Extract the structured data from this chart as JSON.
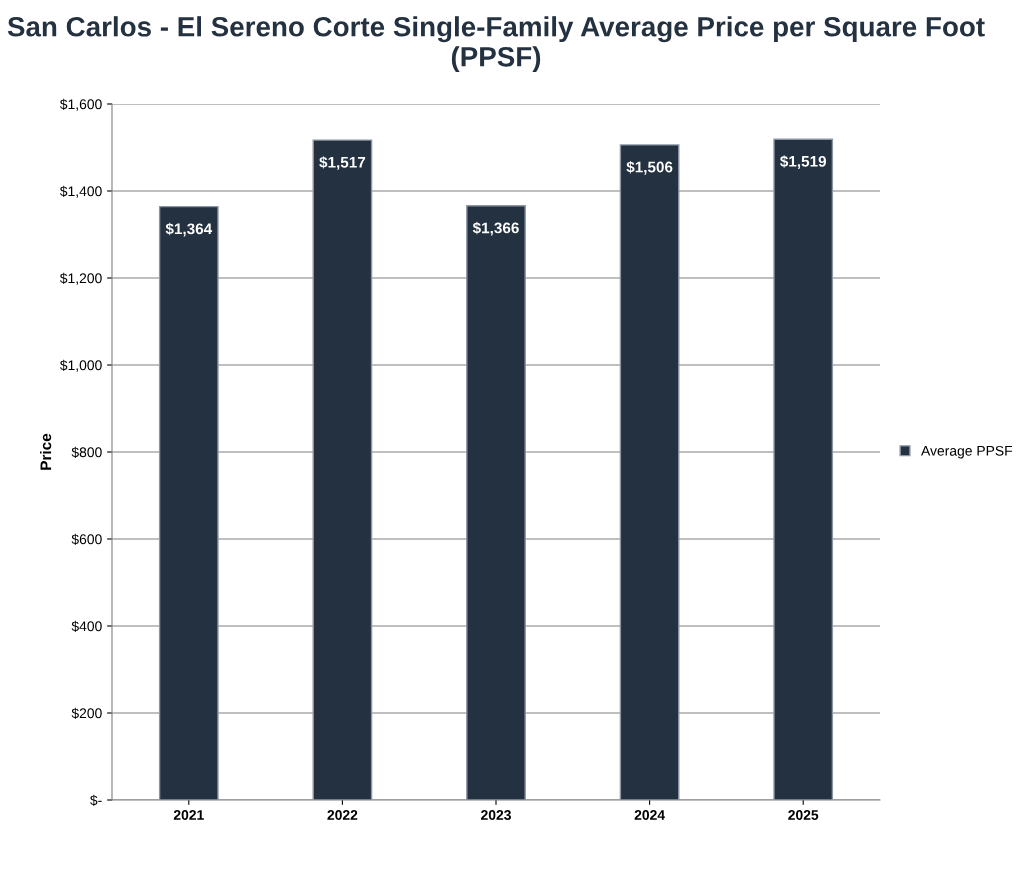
{
  "chart_data": {
    "type": "bar",
    "title": "San Carlos - El Sereno Corte Single-Family Average Price per Square Foot (PPSF)",
    "ylabel": "Price",
    "categories": [
      "2021",
      "2022",
      "2023",
      "2024",
      "2025"
    ],
    "series": [
      {
        "name": "Average PPSF",
        "color": "#243140",
        "values": [
          1364,
          1517,
          1366,
          1506,
          1519
        ],
        "value_labels": [
          "$1,364",
          "$1,517",
          "$1,366",
          "$1,506",
          "$1,519"
        ]
      }
    ],
    "ylim": [
      0,
      1600
    ],
    "yticks": [
      {
        "value": 0,
        "label": "$-"
      },
      {
        "value": 200,
        "label": "$200"
      },
      {
        "value": 400,
        "label": "$400"
      },
      {
        "value": 600,
        "label": "$600"
      },
      {
        "value": 800,
        "label": "$800"
      },
      {
        "value": 1000,
        "label": "$1,000"
      },
      {
        "value": 1200,
        "label": "$1,200"
      },
      {
        "value": 1400,
        "label": "$1,400"
      },
      {
        "value": 1600,
        "label": "$1,600"
      }
    ],
    "grid": "y",
    "legend": "right"
  }
}
